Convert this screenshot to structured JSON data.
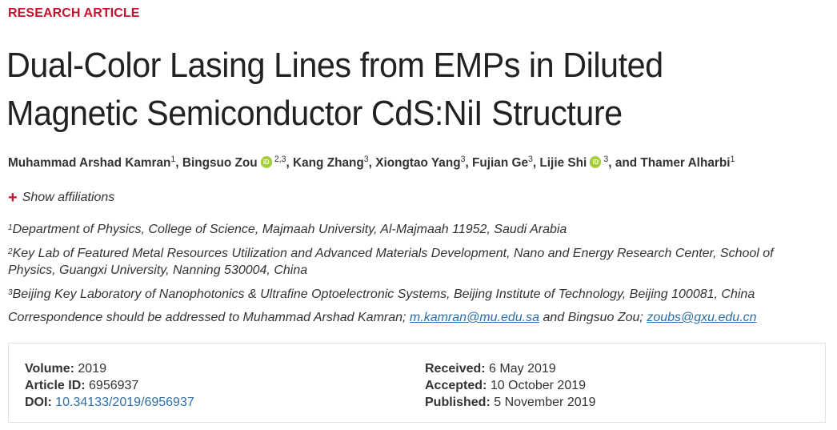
{
  "article": {
    "type_label": "RESEARCH ARTICLE",
    "title": "Dual-Color Lasing Lines from EMPs in Diluted Magnetic Semiconductor CdS:NiI Structure"
  },
  "authors": [
    {
      "name": "Muhammad Arshad Kamran",
      "aff": "1",
      "orcid": false
    },
    {
      "name": "Bingsuo Zou",
      "aff": "2,3",
      "orcid": true
    },
    {
      "name": "Kang Zhang",
      "aff": "3",
      "orcid": false
    },
    {
      "name": "Xiongtao Yang",
      "aff": "3",
      "orcid": false
    },
    {
      "name": "Fujian Ge",
      "aff": "3",
      "orcid": false
    },
    {
      "name": "Lijie Shi",
      "aff": "3",
      "orcid": true
    },
    {
      "name": "Thamer Alharbi",
      "aff": "1",
      "orcid": false
    }
  ],
  "author_separator": ", ",
  "author_final_joiner": ", and ",
  "orcid_label": "iD",
  "show_affiliations_label": "Show affiliations",
  "affiliations": [
    {
      "num": "1",
      "text": "Department of Physics, College of Science, Majmaah University, Al-Majmaah 11952, Saudi Arabia"
    },
    {
      "num": "2",
      "text": "Key Lab of Featured Metal Resources Utilization and Advanced Materials Development, Nano and Energy Research Center, School of Physics, Guangxi University, Nanning 530004, China"
    },
    {
      "num": "3",
      "text": "Beijing Key Laboratory of Nanophotonics & Ultrafine Optoelectronic Systems, Beijing Institute of Technology, Beijing 100081, China"
    }
  ],
  "correspondence": {
    "prefix": "Correspondence should be addressed to Muhammad Arshad Kamran; ",
    "email1": "m.kamran@mu.edu.sa",
    "middle": " and Bingsuo Zou; ",
    "email2": "zoubs@gxu.edu.cn"
  },
  "meta": {
    "volume_label": "Volume:",
    "volume": "2019",
    "article_id_label": "Article ID:",
    "article_id": "6956937",
    "doi_label": "DOI:",
    "doi": "10.34133/2019/6956937",
    "received_label": "Received:",
    "received": "6 May 2019",
    "accepted_label": "Accepted:",
    "accepted": "10 October 2019",
    "published_label": "Published:",
    "published": "5 November 2019"
  },
  "colors": {
    "accent_red": "#c8102e",
    "link_blue": "#2e6ea6",
    "orcid_green": "#a6ce39"
  }
}
